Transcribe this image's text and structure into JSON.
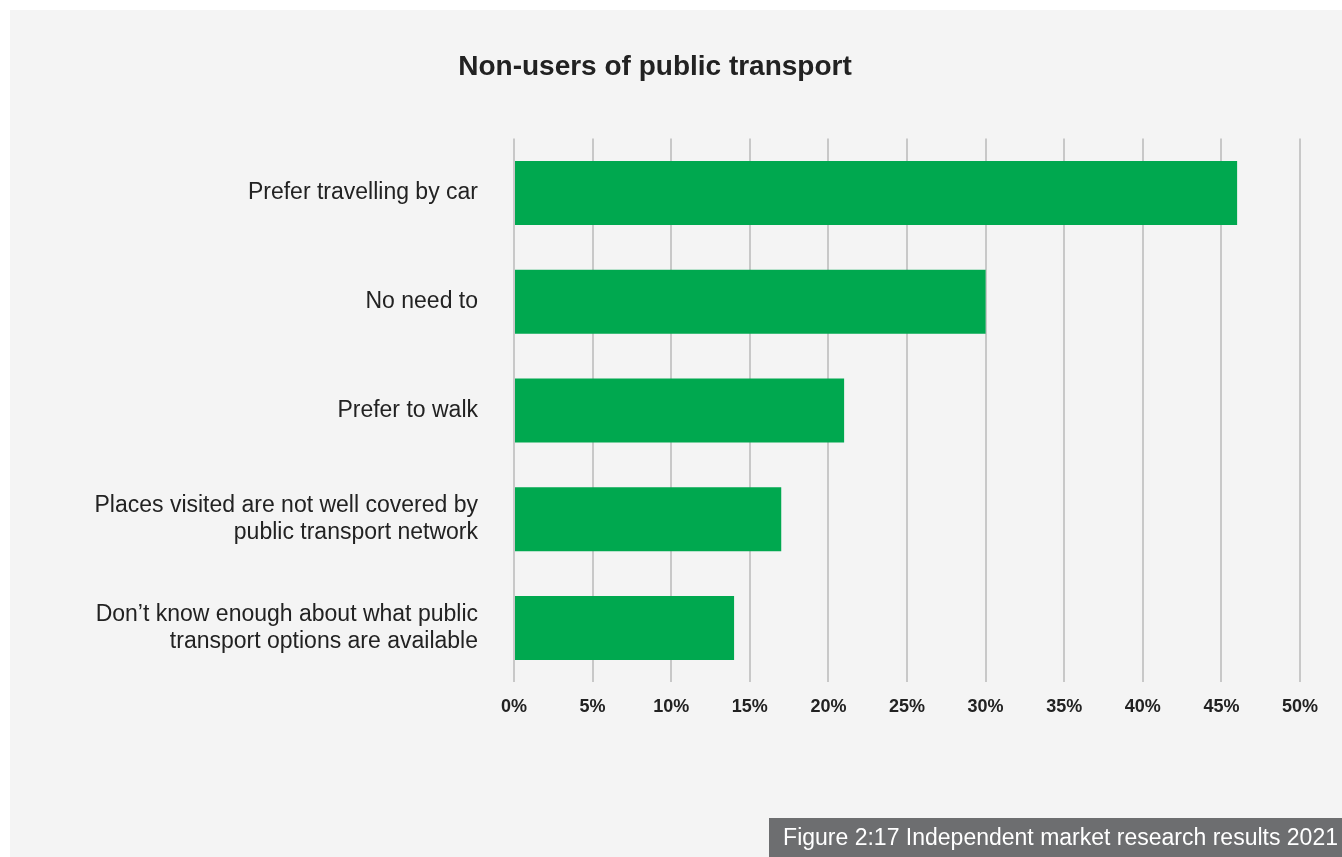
{
  "chart_data": {
    "type": "bar",
    "orientation": "horizontal",
    "title": "Non-users of public transport",
    "categories": [
      "Prefer travelling by car",
      "No need to",
      "Prefer to walk",
      "Places visited are not well covered by public transport network",
      "Don’t know enough about what public transport options are available"
    ],
    "values": [
      46,
      30,
      21,
      17,
      14
    ],
    "color": "#00a84f",
    "xlim": [
      0,
      50
    ],
    "xticks": [
      {
        "value": 0,
        "label": "0%"
      },
      {
        "value": 5,
        "label": "5%"
      },
      {
        "value": 10,
        "label": "10%"
      },
      {
        "value": 15,
        "label": "15%"
      },
      {
        "value": 20,
        "label": "20%"
      },
      {
        "value": 25,
        "label": "25%"
      },
      {
        "value": 30,
        "label": "30%"
      },
      {
        "value": 35,
        "label": "35%"
      },
      {
        "value": 40,
        "label": "40%"
      },
      {
        "value": 45,
        "label": "45%"
      },
      {
        "value": 50,
        "label": "50%"
      }
    ],
    "grid": "x",
    "legend": false,
    "annotations": [
      "Figure 2:17 Independent market research results 2021"
    ]
  }
}
